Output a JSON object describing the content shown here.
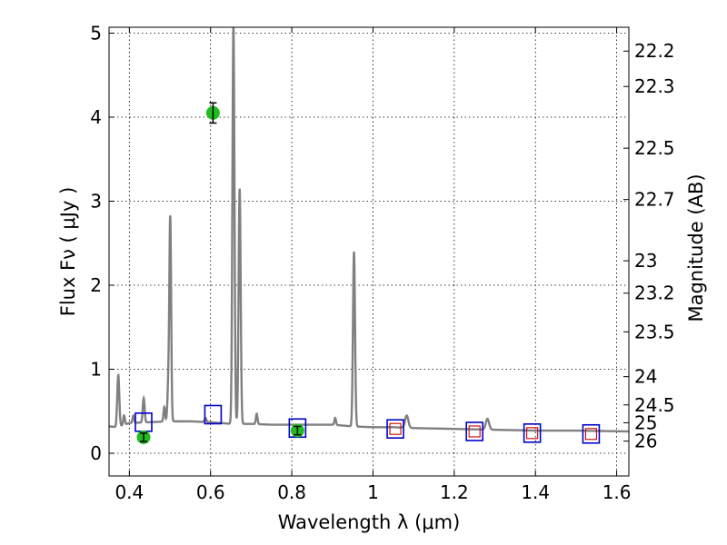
{
  "chart_data": {
    "type": "line",
    "xlabel": "Wavelength  λ (μm)",
    "ylabel": "Flux  Fν  ( μJy )",
    "y2label": "Magnitude (AB)",
    "xlim": [
      0.35,
      1.63
    ],
    "ylim": [
      -0.27,
      5.07
    ],
    "x_ticks": [
      0.4,
      0.6,
      0.8,
      1.0,
      1.2,
      1.4,
      1.6
    ],
    "x_tick_labels": [
      "0.4",
      "0.6",
      "0.8",
      "1",
      "1.2",
      "1.4",
      "1.6"
    ],
    "y_ticks": [
      0,
      1,
      2,
      3,
      4,
      5
    ],
    "y_tick_labels": [
      "0",
      "1",
      "2",
      "3",
      "4",
      "5"
    ],
    "y2_tick_labels": [
      "22.2",
      "22.3",
      "22.5",
      "22.7",
      "23",
      "23.2",
      "23.5",
      "24",
      "24.5",
      "25",
      "26"
    ],
    "grid": true,
    "colors": {
      "spectrum": "#808080",
      "model_box": "#0000cc",
      "model_inner": "#cc0000",
      "observed": "#22bb22"
    },
    "spectrum_continuum": [
      [
        0.35,
        0.32
      ],
      [
        0.37,
        0.31
      ],
      [
        0.4,
        0.36
      ],
      [
        0.45,
        0.37
      ],
      [
        0.5,
        0.38
      ],
      [
        0.55,
        0.38
      ],
      [
        0.6,
        0.37
      ],
      [
        0.65,
        0.35
      ],
      [
        0.7,
        0.35
      ],
      [
        0.75,
        0.34
      ],
      [
        0.8,
        0.34
      ],
      [
        0.85,
        0.34
      ],
      [
        0.9,
        0.34
      ],
      [
        0.95,
        0.32
      ],
      [
        1.0,
        0.31
      ],
      [
        1.05,
        0.31
      ],
      [
        1.1,
        0.3
      ],
      [
        1.2,
        0.29
      ],
      [
        1.3,
        0.28
      ],
      [
        1.4,
        0.27
      ],
      [
        1.5,
        0.27
      ],
      [
        1.63,
        0.26
      ]
    ],
    "emission_lines": [
      {
        "x": 0.3727,
        "peak": 0.93,
        "width": 0.0025
      },
      {
        "x": 0.3869,
        "peak": 0.45,
        "width": 0.002
      },
      {
        "x": 0.41,
        "peak": 0.45,
        "width": 0.002
      },
      {
        "x": 0.4341,
        "peak": 0.52,
        "width": 0.002
      },
      {
        "x": 0.4363,
        "peak": 0.55,
        "width": 0.002
      },
      {
        "x": 0.4861,
        "peak": 0.55,
        "width": 0.002
      },
      {
        "x": 0.4959,
        "peak": 0.8,
        "width": 0.0022
      },
      {
        "x": 0.5007,
        "peak": 2.8,
        "width": 0.0022
      },
      {
        "x": 0.5876,
        "peak": 0.42,
        "width": 0.002
      },
      {
        "x": 0.6563,
        "peak": 5.1,
        "width": 0.0025
      },
      {
        "x": 0.6716,
        "peak": 3.15,
        "width": 0.0025
      },
      {
        "x": 0.7136,
        "peak": 0.47,
        "width": 0.002
      },
      {
        "x": 0.9069,
        "peak": 0.42,
        "width": 0.002
      },
      {
        "x": 0.9532,
        "peak": 2.4,
        "width": 0.0025
      },
      {
        "x": 1.083,
        "peak": 0.45,
        "width": 0.004
      },
      {
        "x": 1.2818,
        "peak": 0.41,
        "width": 0.004
      }
    ],
    "model_photometry": [
      {
        "x": 0.435,
        "y": 0.37,
        "inner": false
      },
      {
        "x": 0.606,
        "y": 0.46,
        "inner": false
      },
      {
        "x": 0.814,
        "y": 0.3,
        "inner": false
      },
      {
        "x": 1.055,
        "y": 0.29,
        "inner": true
      },
      {
        "x": 1.25,
        "y": 0.26,
        "inner": true
      },
      {
        "x": 1.392,
        "y": 0.24,
        "inner": true
      },
      {
        "x": 1.537,
        "y": 0.23,
        "inner": true
      }
    ],
    "observed_photometry": [
      {
        "x": 0.435,
        "y": 0.19,
        "err": 0.05
      },
      {
        "x": 0.606,
        "y": 4.05,
        "err": 0.12
      },
      {
        "x": 0.814,
        "y": 0.27,
        "err": 0.05
      }
    ]
  }
}
